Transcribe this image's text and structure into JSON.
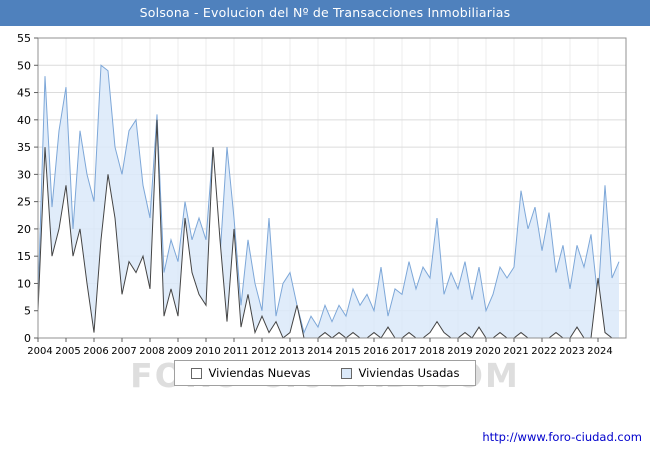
{
  "title": "Solsona - Evolucion del Nº de Transacciones Inmobiliarias",
  "watermark": "FORO-CIUDAD.COM",
  "footer": {
    "url": "http://www.foro-ciudad.com"
  },
  "colors": {
    "title_bar": "#4f81bd",
    "footer_link": "#0000cc",
    "grid_h": "#dcdcdc",
    "grid_v": "#ececec",
    "plot_border": "#909090",
    "watermark": "#c9c9c9"
  },
  "legend": {
    "items": [
      {
        "label": "Viviendas Nuevas"
      },
      {
        "label": "Viviendas Usadas"
      }
    ]
  },
  "chart_data": {
    "type": "area",
    "title": "Solsona - Evolucion del Nº de Transacciones Inmobiliarias",
    "xlabel": "",
    "ylabel": "",
    "ylim": [
      0,
      55
    ],
    "y_ticks": [
      0,
      5,
      10,
      15,
      20,
      25,
      30,
      35,
      40,
      45,
      50,
      55
    ],
    "grid": true,
    "legend_position": "bottom",
    "x_years": [
      2004,
      2005,
      2006,
      2007,
      2008,
      2009,
      2010,
      2011,
      2012,
      2013,
      2014,
      2015,
      2016,
      2017,
      2018,
      2019,
      2020,
      2021,
      2022,
      2023,
      2024
    ],
    "quarters_per_year": 4,
    "series": [
      {
        "name": "Viviendas Nuevas",
        "fill": "#ffffff",
        "stroke": "#444444",
        "opacity": 1,
        "z": 2,
        "values": [
          5,
          35,
          15,
          20,
          28,
          15,
          20,
          10,
          1,
          18,
          30,
          22,
          8,
          14,
          12,
          15,
          9,
          40,
          4,
          9,
          4,
          22,
          12,
          8,
          6,
          35,
          18,
          3,
          20,
          2,
          8,
          1,
          4,
          1,
          3,
          0,
          1,
          6,
          0,
          0,
          0,
          1,
          0,
          1,
          0,
          1,
          0,
          0,
          1,
          0,
          2,
          0,
          0,
          1,
          0,
          0,
          1,
          3,
          1,
          0,
          0,
          1,
          0,
          2,
          0,
          0,
          1,
          0,
          0,
          1,
          0,
          0,
          0,
          0,
          1,
          0,
          0,
          2,
          0,
          0,
          11,
          1,
          0,
          0
        ]
      },
      {
        "name": "Viviendas Usadas",
        "fill": "#dbe9f9",
        "stroke": "#7da7d8",
        "opacity": 0.85,
        "z": 1,
        "values": [
          7,
          48,
          24,
          38,
          46,
          20,
          38,
          30,
          25,
          50,
          49,
          35,
          30,
          38,
          40,
          28,
          22,
          41,
          12,
          18,
          14,
          25,
          18,
          22,
          18,
          35,
          15,
          35,
          22,
          6,
          18,
          10,
          5,
          22,
          4,
          10,
          12,
          6,
          1,
          4,
          2,
          6,
          3,
          6,
          4,
          9,
          6,
          8,
          5,
          13,
          4,
          9,
          8,
          14,
          9,
          13,
          11,
          22,
          8,
          12,
          9,
          14,
          7,
          13,
          5,
          8,
          13,
          11,
          13,
          27,
          20,
          24,
          16,
          23,
          12,
          17,
          9,
          17,
          13,
          19,
          7,
          28,
          11,
          14
        ]
      }
    ]
  }
}
